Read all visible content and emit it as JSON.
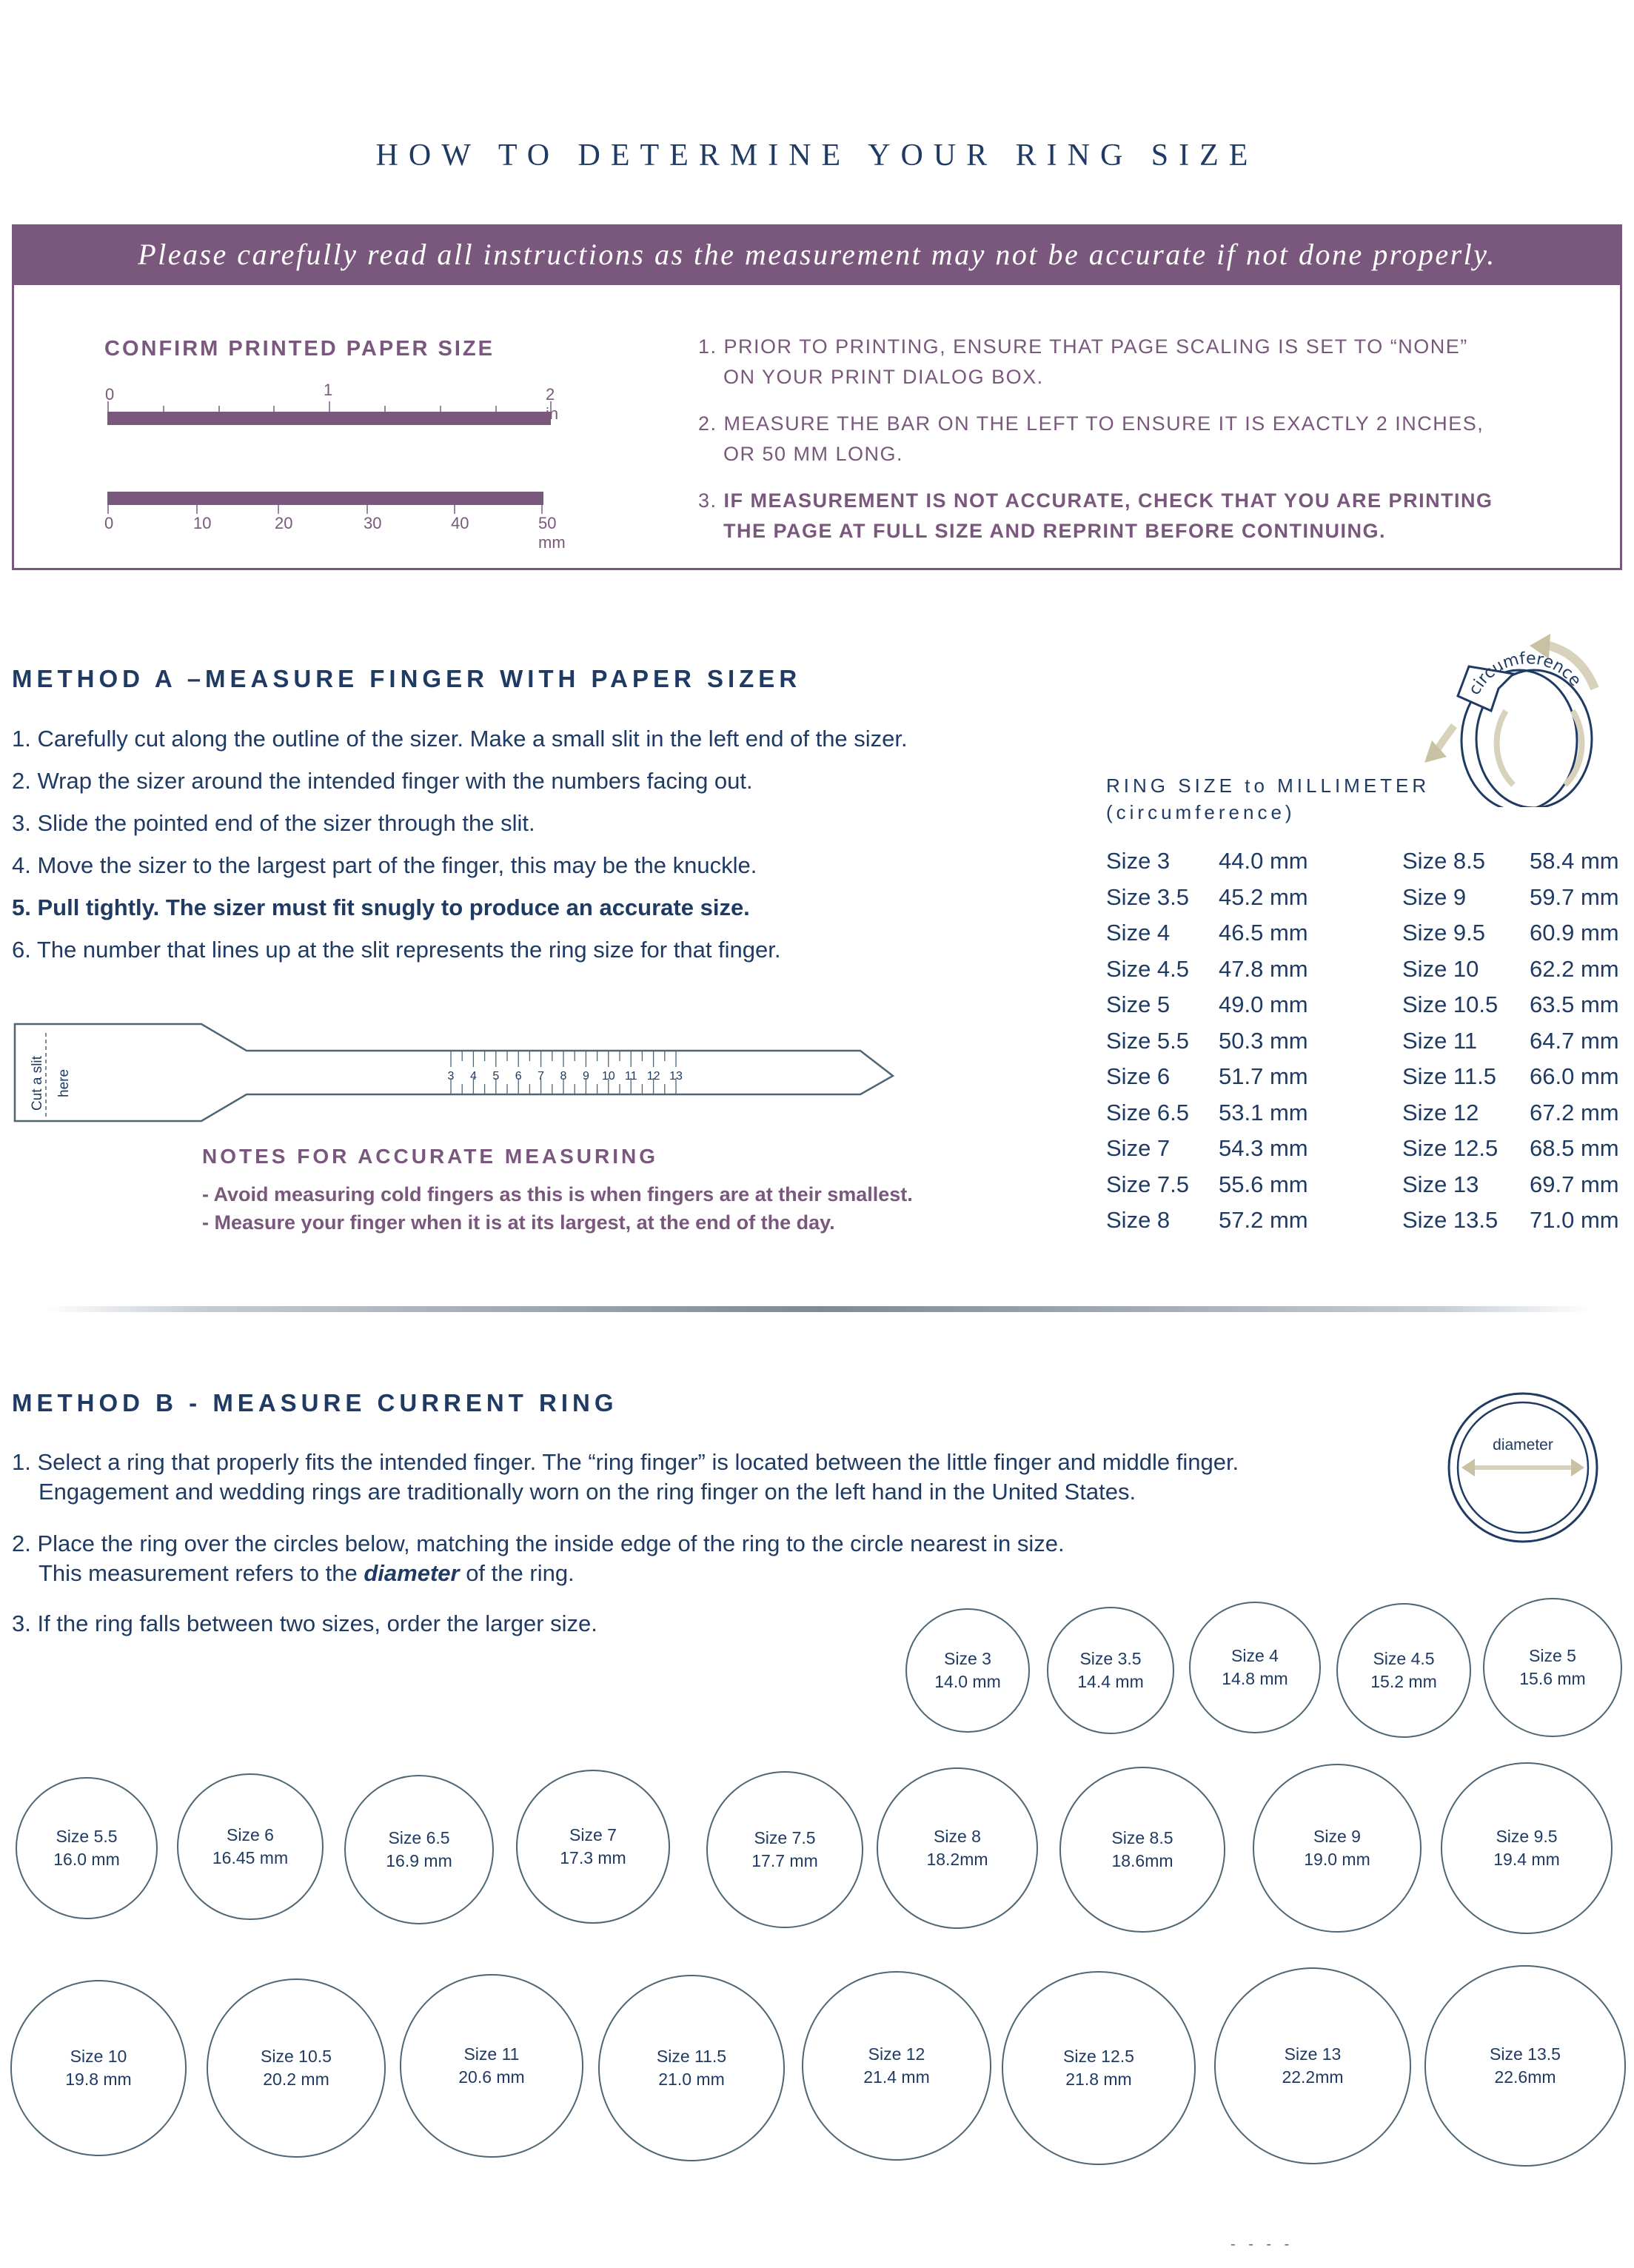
{
  "title": "HOW TO DETERMINE YOUR RING SIZE",
  "banner": "Please carefully read all instructions as the measurement may not be accurate if not done properly.",
  "confirm": {
    "heading": "CONFIRM PRINTED PAPER SIZE",
    "inch_labels": [
      "0",
      "1",
      "2 in"
    ],
    "mm_labels": [
      "0",
      "10",
      "20",
      "30",
      "40",
      "50 mm"
    ],
    "instructions": [
      {
        "num": "1.",
        "lines": [
          "PRIOR TO PRINTING, ENSURE THAT PAGE SCALING IS SET TO “NONE”",
          "ON YOUR PRINT DIALOG BOX."
        ]
      },
      {
        "num": "2.",
        "lines": [
          "MEASURE THE BAR ON THE LEFT TO ENSURE IT IS EXACTLY 2 INCHES,",
          "OR 50 MM LONG."
        ]
      },
      {
        "num": "3.",
        "lines": [
          "IF MEASUREMENT IS NOT ACCURATE, CHECK THAT YOU ARE PRINTING",
          "THE PAGE AT FULL SIZE AND REPRINT BEFORE CONTINUING."
        ]
      }
    ]
  },
  "method_a": {
    "heading": "METHOD A –MEASURE FINGER WITH PAPER SIZER",
    "steps": [
      "1. Carefully cut  along the outline of the sizer. Make a small slit in the left end of the sizer.",
      "2. Wrap the sizer around the intended finger with the numbers facing out.",
      "3. Slide the pointed end of the sizer through the slit.",
      "4. Move the sizer to the largest part of the finger, this may be the knuckle.",
      "5. Pull tightly. The sizer must fit snugly to produce an accurate size.",
      "6. The number that lines up at the slit represents the ring size for that finger."
    ],
    "sizer": {
      "slit_label_1": "Cut a slit",
      "slit_label_2": "here",
      "numbers": [
        "3",
        "4",
        "5",
        "6",
        "7",
        "8",
        "9",
        "10",
        "11",
        "12",
        "13"
      ]
    },
    "notes_heading": "NOTES FOR ACCURATE MEASURING",
    "notes": [
      "- Avoid measuring cold fingers as this  is when fingers are at their smallest.",
      "- Measure your finger when it is at its largest, at the end of the day."
    ],
    "icon": {
      "name": "circumference-ring-icon",
      "label": "circumference"
    },
    "table": {
      "title": "RING SIZE to MILLIMETER",
      "subtitle": "(circumference)",
      "left": [
        [
          "Size 3",
          "44.0 mm"
        ],
        [
          "Size 3.5",
          "45.2 mm"
        ],
        [
          "Size 4",
          "46.5 mm"
        ],
        [
          "Size 4.5",
          "47.8 mm"
        ],
        [
          "Size 5",
          "49.0 mm"
        ],
        [
          "Size 5.5",
          "50.3 mm"
        ],
        [
          "Size 6",
          "51.7 mm"
        ],
        [
          "Size 6.5",
          "53.1 mm"
        ],
        [
          "Size 7",
          "54.3 mm"
        ],
        [
          "Size 7.5",
          "55.6 mm"
        ],
        [
          "Size 8",
          "57.2 mm"
        ]
      ],
      "right": [
        [
          "Size 8.5",
          "58.4 mm"
        ],
        [
          "Size 9",
          "59.7 mm"
        ],
        [
          "Size 9.5",
          "60.9 mm"
        ],
        [
          "Size 10",
          "62.2 mm"
        ],
        [
          "Size 10.5",
          "63.5 mm"
        ],
        [
          "Size 11",
          "64.7 mm"
        ],
        [
          "Size 11.5",
          "66.0 mm"
        ],
        [
          "Size 12",
          "67.2 mm"
        ],
        [
          "Size 12.5",
          "68.5 mm"
        ],
        [
          "Size 13",
          "69.7 mm"
        ],
        [
          "Size 13.5",
          "71.0 mm"
        ]
      ]
    }
  },
  "method_b": {
    "heading": "METHOD B - MEASURE CURRENT RING",
    "icon": {
      "name": "diameter-ring-icon",
      "label": "diameter"
    },
    "steps": [
      [
        "1. Select a ring that properly fits the intended finger. The “ring finger” is located between the little finger and middle finger.",
        "Engagement and wedding rings are traditionally worn on the ring finger on the left hand in the United States."
      ],
      [
        "2. Place the ring over the circles below, matching the inside edge of the ring to the circle nearest in size.",
        "This measurement refers to the ",
        "diameter",
        " of the ring."
      ],
      [
        "3. If the ring falls between two sizes, order the larger size."
      ]
    ],
    "rings": [
      {
        "size": "Size 3",
        "mm": "14.0 mm",
        "d": 14.0
      },
      {
        "size": "Size 3.5",
        "mm": "14.4 mm",
        "d": 14.4
      },
      {
        "size": "Size 4",
        "mm": "14.8 mm",
        "d": 14.8
      },
      {
        "size": "Size 4.5",
        "mm": "15.2 mm",
        "d": 15.2
      },
      {
        "size": "Size 5",
        "mm": "15.6 mm",
        "d": 15.6
      },
      {
        "size": "Size 5.5",
        "mm": "16.0 mm",
        "d": 16.0
      },
      {
        "size": "Size 6",
        "mm": "16.45 mm",
        "d": 16.45
      },
      {
        "size": "Size 6.5",
        "mm": "16.9 mm",
        "d": 16.9
      },
      {
        "size": "Size 7",
        "mm": "17.3 mm",
        "d": 17.3
      },
      {
        "size": "Size 7.5",
        "mm": "17.7 mm",
        "d": 17.7
      },
      {
        "size": "Size 8",
        "mm": "18.2mm",
        "d": 18.2
      },
      {
        "size": "Size 8.5",
        "mm": "18.6mm",
        "d": 18.6
      },
      {
        "size": "Size 9",
        "mm": "19.0 mm",
        "d": 19.0
      },
      {
        "size": "Size 9.5",
        "mm": "19.4 mm",
        "d": 19.4
      },
      {
        "size": "Size 10",
        "mm": "19.8 mm",
        "d": 19.8
      },
      {
        "size": "Size 10.5",
        "mm": "20.2 mm",
        "d": 20.2
      },
      {
        "size": "Size 11",
        "mm": "20.6 mm",
        "d": 20.6
      },
      {
        "size": "Size 11.5",
        "mm": "21.0 mm",
        "d": 21.0
      },
      {
        "size": "Size 12",
        "mm": "21.4 mm",
        "d": 21.4
      },
      {
        "size": "Size 12.5",
        "mm": "21.8 mm",
        "d": 21.8
      },
      {
        "size": "Size 13",
        "mm": "22.2mm",
        "d": 22.2
      },
      {
        "size": "Size 13.5",
        "mm": "22.6mm",
        "d": 22.6
      }
    ]
  },
  "footer_mark": "- - - -",
  "colors": {
    "navy": "#1f3a63",
    "purple": "#7a577c",
    "gold": "#c9c1a4"
  }
}
